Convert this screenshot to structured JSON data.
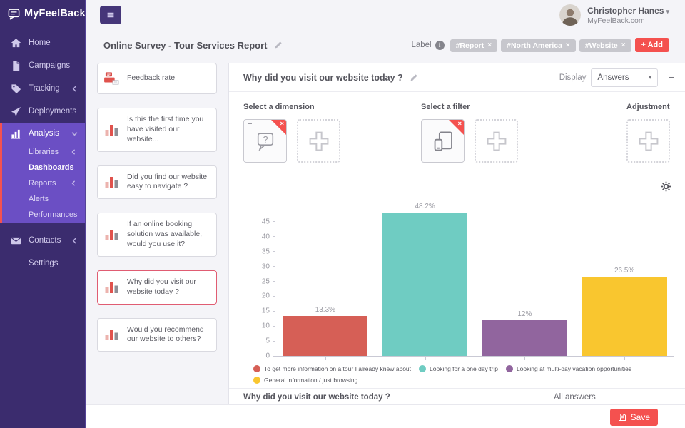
{
  "sidebar": {
    "logo_text": "MyFeelBack",
    "items": [
      {
        "label": "Home",
        "icon": "home-icon"
      },
      {
        "label": "Campaigns",
        "icon": "campaigns-icon"
      },
      {
        "label": "Tracking",
        "icon": "tag-icon",
        "chevron": "left"
      },
      {
        "label": "Deployments",
        "icon": "deployments-icon"
      },
      {
        "label": "Analysis",
        "icon": "analysis-icon",
        "chevron": "down",
        "active": true,
        "children": [
          {
            "label": "Libraries",
            "chevron": "left"
          },
          {
            "label": "Dashboards",
            "selected": true
          },
          {
            "label": "Reports",
            "chevron": "left"
          },
          {
            "label": "Alerts"
          },
          {
            "label": "Performances"
          }
        ]
      },
      {
        "label": "Contacts",
        "icon": "contacts-icon",
        "chevron": "left",
        "bottom": true
      },
      {
        "label": "Settings",
        "icon": "settings-icon"
      }
    ]
  },
  "header": {
    "user_name": "Christopher Hanes",
    "user_org": "MyFeelBack.com"
  },
  "toolbar": {
    "page_title": "Online Survey - Tour Services Report",
    "label_caption": "Label",
    "labels": [
      "#Report",
      "#North America",
      "#Website"
    ],
    "add_label": "+ Add"
  },
  "questions": {
    "cards": [
      {
        "title": "Feedback rate",
        "icon": "feedback-rate-icon"
      },
      {
        "title": "Is this the first time you have visited our website...",
        "icon": "bar-chart-icon"
      },
      {
        "title": "Did you find our website easy to navigate ?",
        "icon": "bar-chart-icon"
      },
      {
        "title": "If an online booking solution was available, would you use it?",
        "icon": "bar-chart-icon"
      },
      {
        "title": "Why did you visit our website today ?",
        "icon": "bar-chart-icon",
        "selected": true
      },
      {
        "title": "Would you recommend our website to others?",
        "icon": "bar-chart-icon"
      }
    ]
  },
  "panel": {
    "title": "Why did you visit our website today ?",
    "display_label": "Display",
    "display_value": "Answers",
    "sections": {
      "dimension_label": "Select a dimension",
      "filter_label": "Select a filter",
      "adjustment_label": "Adjustment"
    },
    "footer_question": "Why did you visit our website today ?",
    "footer_answer": "All answers"
  },
  "chart_data": {
    "type": "bar",
    "title": "",
    "xlabel": "",
    "ylabel": "",
    "categories": [
      "To get more information on a tour I already knew about",
      "Looking for a one day trip",
      "Looking at multi-day vacation opportunities",
      "General information / just browsing"
    ],
    "values": [
      13.3,
      48.2,
      12,
      26.5
    ],
    "value_labels": [
      "13.3%",
      "48.2%",
      "12%",
      "26.5%"
    ],
    "colors": [
      "#d65f56",
      "#6fccc2",
      "#91659e",
      "#f9c62f"
    ],
    "ylim": [
      0,
      50
    ],
    "yticks": [
      0,
      5,
      10,
      15,
      20,
      25,
      30,
      35,
      40,
      45
    ],
    "grid": false,
    "legend_position": "bottom"
  },
  "footer": {
    "save_label": "Save"
  }
}
